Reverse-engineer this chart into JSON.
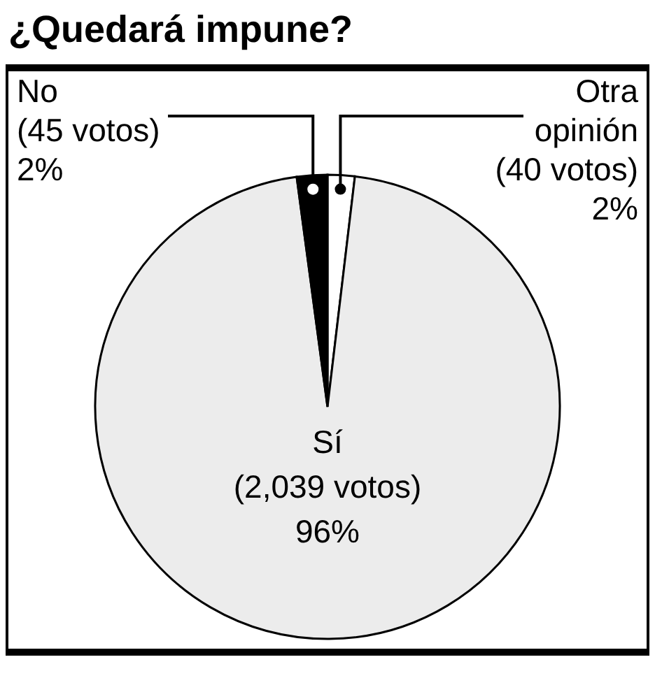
{
  "chart_data": {
    "type": "pie",
    "title": "¿Quedará impune?",
    "categories": [
      "Otra opinión",
      "Sí",
      "No"
    ],
    "values": [
      40,
      2039,
      45
    ],
    "value_labels": [
      "(40 votos)\n2%",
      "(2,039 votos)\n96%",
      "(45 votos)\n2%"
    ],
    "colors": [
      "#ffffff",
      "#ececec",
      "#000000"
    ]
  }
}
